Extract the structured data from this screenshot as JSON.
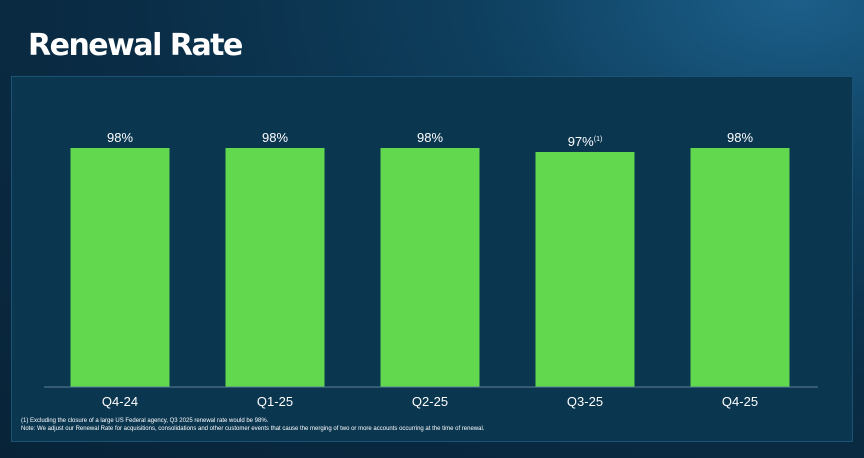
{
  "page": {
    "title": "Renewal Rate"
  },
  "chart_data": {
    "type": "bar",
    "title": "Renewal Rate",
    "categories": [
      "Q4-24",
      "Q1-25",
      "Q2-25",
      "Q3-25",
      "Q4-25"
    ],
    "values": [
      98,
      98,
      98,
      97,
      98
    ],
    "data_labels": [
      "98%",
      "98%",
      "98%",
      "97%",
      "98%"
    ],
    "label_footnote_marks": [
      "",
      "",
      "",
      "(1)",
      ""
    ],
    "xlabel": "",
    "ylabel": "",
    "ylim": [
      0,
      100
    ],
    "grid": false,
    "bar_color": "#62d84e",
    "axis_color": "#5c7f99"
  },
  "footnotes": [
    "(1) Excluding the closure of a large US Federal agency, Q3 2025 renewal rate would be 98%.",
    "Note: We adjust our Renewal Rate for acquisitions, consolidations and other customer events that cause the merging of two or more accounts occurring at the time of renewal."
  ],
  "colors": {
    "panel_background": "#0b3650",
    "text": "#ffffff"
  }
}
